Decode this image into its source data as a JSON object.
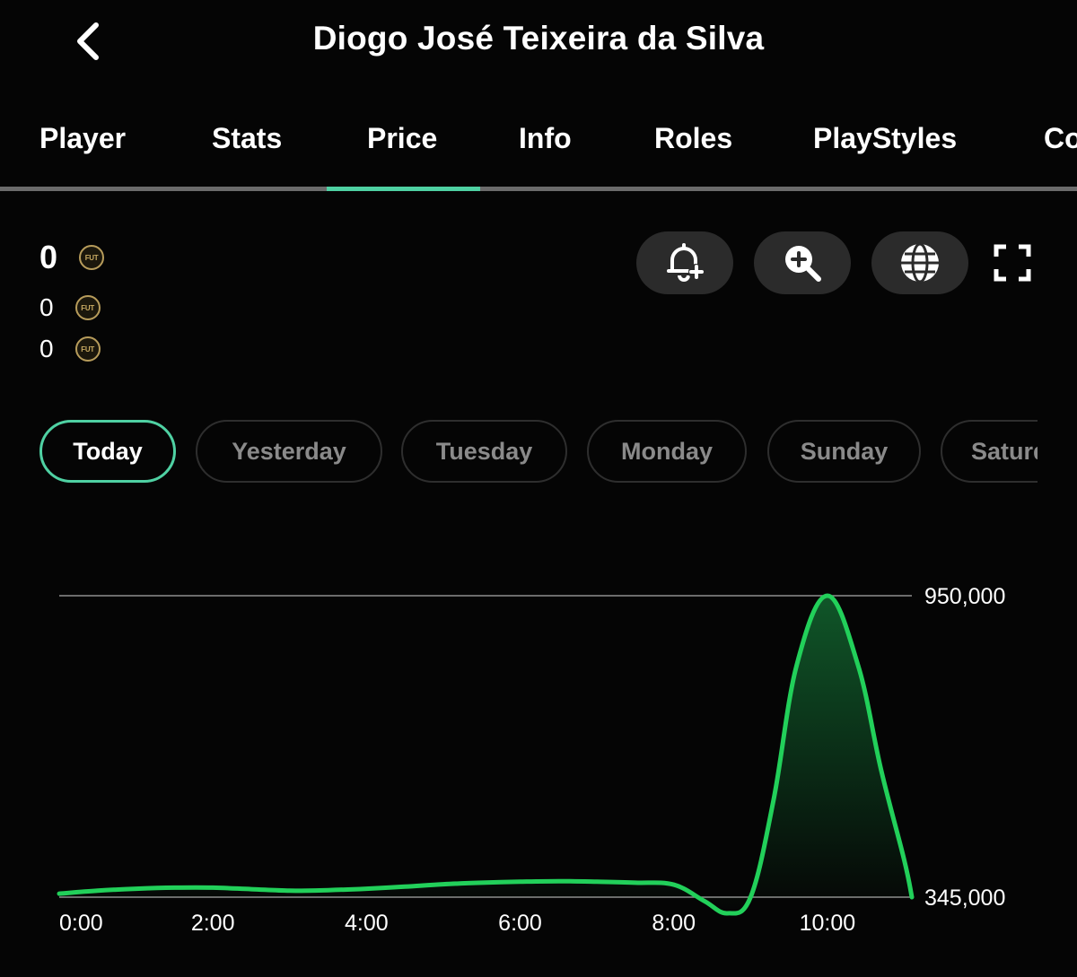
{
  "header": {
    "title": "Diogo José Teixeira da Silva",
    "back_icon": "chevron-left-icon"
  },
  "tabs": [
    {
      "label": "Player",
      "active": false
    },
    {
      "label": "Stats",
      "active": false
    },
    {
      "label": "Price",
      "active": true
    },
    {
      "label": "Info",
      "active": false
    },
    {
      "label": "Roles",
      "active": false
    },
    {
      "label": "PlayStyles",
      "active": false
    },
    {
      "label": "Co",
      "active": false
    }
  ],
  "prices": {
    "main": "0",
    "secondary": "0",
    "tertiary": "0",
    "coin_label": "FUT"
  },
  "actions": {
    "alert_icon": "bell-plus-icon",
    "zoom_icon": "zoom-in-icon",
    "globe_icon": "globe-icon",
    "fullscreen_icon": "fullscreen-icon"
  },
  "days": [
    {
      "label": "Today",
      "active": true
    },
    {
      "label": "Yesterday",
      "active": false
    },
    {
      "label": "Tuesday",
      "active": false
    },
    {
      "label": "Monday",
      "active": false
    },
    {
      "label": "Sunday",
      "active": false
    },
    {
      "label": "Saturday",
      "active": false
    }
  ],
  "colors": {
    "accent": "#4fd1a3",
    "line": "#22d05a",
    "background": "#050505"
  },
  "chart_data": {
    "type": "area",
    "x": [
      0,
      0.5,
      1,
      1.5,
      2,
      2.5,
      3,
      3.5,
      4,
      4.5,
      5,
      5.5,
      6,
      6.5,
      7,
      7.5,
      8,
      8.4,
      8.7,
      9,
      9.3,
      9.6,
      10,
      10.4,
      10.7,
      11,
      11.1
    ],
    "y": [
      352000,
      358000,
      362000,
      364000,
      364000,
      361000,
      358000,
      359000,
      362000,
      366000,
      371000,
      374000,
      376000,
      377000,
      376000,
      374000,
      370000,
      337000,
      305000,
      345000,
      540000,
      810000,
      950000,
      810000,
      600000,
      420000,
      345000
    ],
    "ylim": [
      345000,
      950000
    ],
    "yticks": [
      "950,000",
      "345,000"
    ],
    "xticks": [
      "0:00",
      "2:00",
      "4:00",
      "6:00",
      "8:00",
      "10:00"
    ],
    "xtick_values": [
      0,
      2,
      4,
      6,
      8,
      10
    ],
    "xlim": [
      0,
      11.1
    ],
    "grid": "horizontal lines at y-axis ticks"
  }
}
